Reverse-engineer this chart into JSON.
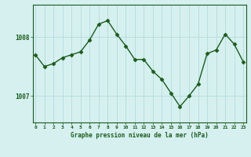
{
  "x": [
    0,
    1,
    2,
    3,
    4,
    5,
    6,
    7,
    8,
    9,
    10,
    11,
    12,
    13,
    14,
    15,
    16,
    17,
    18,
    19,
    20,
    21,
    22,
    23
  ],
  "y": [
    1007.7,
    1007.5,
    1007.55,
    1007.65,
    1007.7,
    1007.75,
    1007.95,
    1008.22,
    1008.28,
    1008.05,
    1007.85,
    1007.62,
    1007.62,
    1007.42,
    1007.28,
    1007.05,
    1006.82,
    1007.0,
    1007.2,
    1007.72,
    1007.78,
    1008.05,
    1007.88,
    1007.58
  ],
  "line_color": "#1a5c1a",
  "marker_color": "#1a5c1a",
  "bg_color": "#d6f0f0",
  "grid_color": "#b8dede",
  "axis_color": "#1a5c1a",
  "title": "Graphe pression niveau de la mer (hPa)",
  "xlabel_ticks": [
    0,
    1,
    2,
    3,
    4,
    5,
    6,
    7,
    8,
    9,
    10,
    11,
    12,
    13,
    14,
    15,
    16,
    17,
    18,
    19,
    20,
    21,
    22,
    23
  ],
  "ytick_vals": [
    1007,
    1008
  ],
  "ytick_labels": [
    "1007",
    "1008"
  ],
  "ylim": [
    1006.55,
    1008.55
  ],
  "xlim": [
    -0.3,
    23.3
  ]
}
